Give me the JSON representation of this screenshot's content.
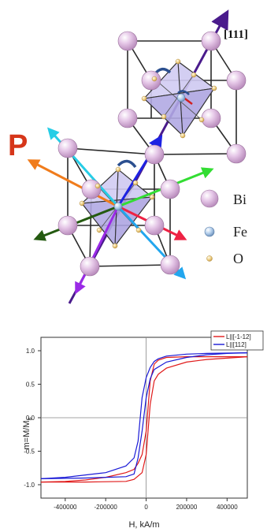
{
  "crystal": {
    "direction_label": "[111]",
    "polarization_label": "P",
    "legend": [
      {
        "label": "Bi",
        "color": "#d9b3dc"
      },
      {
        "label": "Fe",
        "color": "#a9c6e6"
      },
      {
        "label": "O",
        "color": "#f2d79a"
      }
    ]
  },
  "chart_data": {
    "type": "line",
    "xlabel": "H, kA/m",
    "ylabel": "m=M/M",
    "ylabel_subscript": "s",
    "xlim": [
      -520000,
      500000
    ],
    "ylim": [
      -1.2,
      1.2
    ],
    "x_ticks": [
      -400000,
      -200000,
      0,
      200000,
      400000
    ],
    "x_tick_labels": [
      "-400000",
      "-200000",
      "0",
      "200000",
      "400000"
    ],
    "y_ticks": [
      -1.0,
      -0.5,
      0.0,
      0.5,
      1.0
    ],
    "y_tick_labels": [
      "-1.0",
      "-0.5",
      "0.0",
      "0.5",
      "1.0"
    ],
    "legend_position": "top-right",
    "series": [
      {
        "name": "L||[-1-12]",
        "color": "#e01919",
        "upper": {
          "x": [
            -520000,
            -300000,
            -100000,
            -60000,
            -20000,
            0,
            20000,
            40000,
            60000,
            100000,
            200000,
            300000,
            400000,
            500000
          ],
          "y": [
            -0.96,
            -0.96,
            -0.95,
            -0.92,
            -0.82,
            -0.55,
            0.2,
            0.55,
            0.65,
            0.74,
            0.83,
            0.87,
            0.89,
            0.91
          ]
        },
        "lower": {
          "x": [
            -520000,
            -400000,
            -300000,
            -200000,
            -100000,
            -60000,
            -40000,
            -20000,
            0,
            20000,
            40000,
            60000,
            100000,
            200000,
            300000,
            500000
          ],
          "y": [
            -0.96,
            -0.95,
            -0.93,
            -0.89,
            -0.82,
            -0.77,
            -0.68,
            -0.55,
            -0.2,
            0.55,
            0.8,
            0.86,
            0.9,
            0.91,
            0.91,
            0.91
          ]
        }
      },
      {
        "name": "L||[112]",
        "color": "#1919d6",
        "upper": {
          "x": [
            -520000,
            -400000,
            -200000,
            -100000,
            -60000,
            -40000,
            -20000,
            0,
            20000,
            40000,
            60000,
            100000,
            200000,
            300000,
            500000
          ],
          "y": [
            -0.91,
            -0.89,
            -0.82,
            -0.72,
            -0.6,
            -0.35,
            0.3,
            0.6,
            0.75,
            0.84,
            0.88,
            0.92,
            0.95,
            0.96,
            0.97
          ]
        },
        "lower": {
          "x": [
            -520000,
            -300000,
            -100000,
            -60000,
            -40000,
            -20000,
            0,
            20000,
            40000,
            100000,
            200000,
            300000,
            400000,
            500000
          ],
          "y": [
            -0.91,
            -0.9,
            -0.88,
            -0.84,
            -0.6,
            -0.2,
            0.3,
            0.58,
            0.72,
            0.83,
            0.9,
            0.94,
            0.96,
            0.97
          ]
        }
      }
    ]
  }
}
